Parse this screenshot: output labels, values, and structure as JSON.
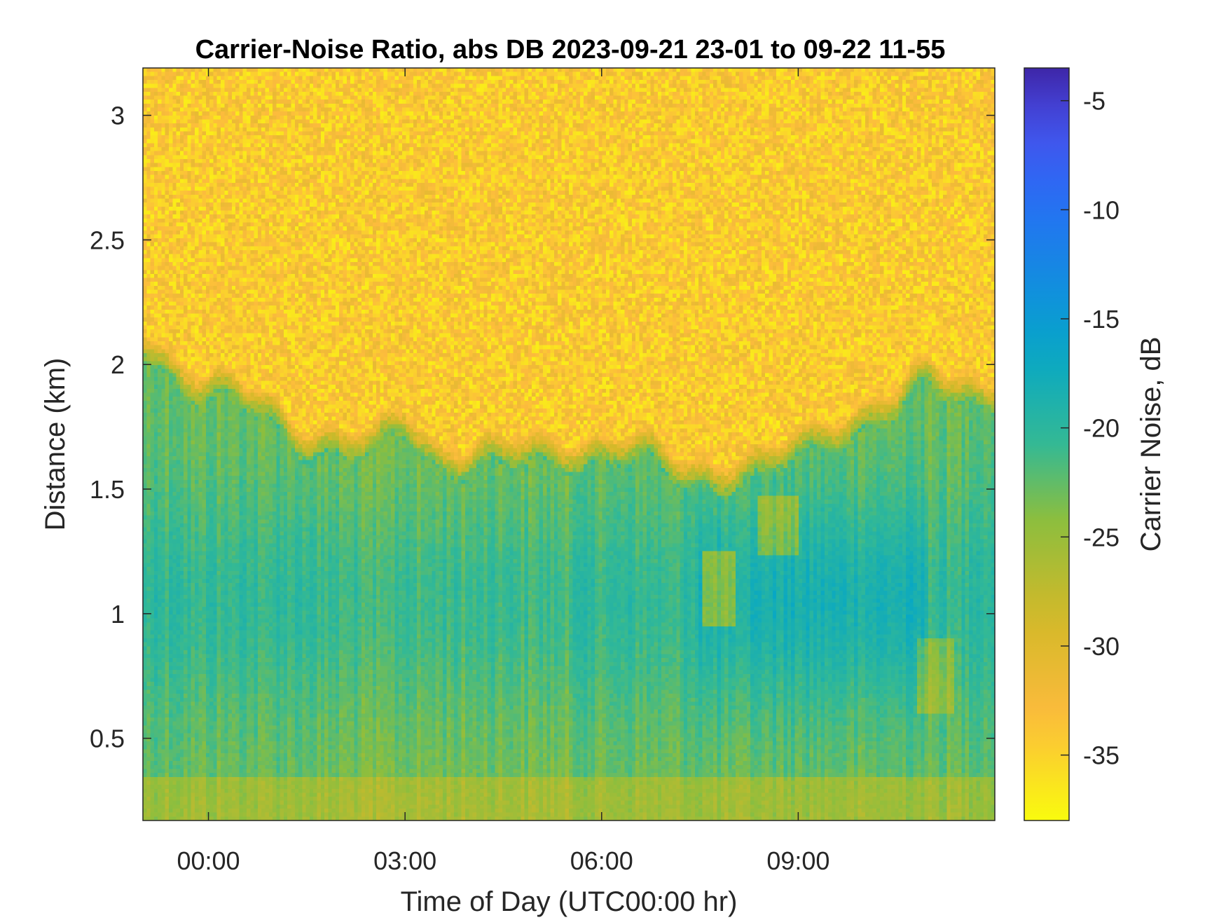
{
  "chart_data": {
    "type": "heatmap",
    "title": "Carrier-Noise Ratio, abs DB 2023-09-21 23-01 to 09-22 11-55",
    "xlabel": "Time of Day (UTC00:00 hr)",
    "ylabel": "Distance (km)",
    "colorbar_label": "Carrier Noise, dB",
    "colormap": "parula (reversed)",
    "xlim_hours": [
      -1.0,
      12.0
    ],
    "ylim_km": [
      0.17,
      3.19
    ],
    "clim_db": [
      -38,
      -3.5
    ],
    "x_ticks": [
      {
        "value": 0,
        "label": "00:00"
      },
      {
        "value": 3,
        "label": "03:00"
      },
      {
        "value": 6,
        "label": "06:00"
      },
      {
        "value": 9,
        "label": "09:00"
      }
    ],
    "y_ticks": [
      {
        "value": 0.5,
        "label": "0.5"
      },
      {
        "value": 1.0,
        "label": "1"
      },
      {
        "value": 1.5,
        "label": "1.5"
      },
      {
        "value": 2.0,
        "label": "2"
      },
      {
        "value": 2.5,
        "label": "2.5"
      },
      {
        "value": 3.0,
        "label": "3"
      }
    ],
    "colorbar_ticks": [
      {
        "value": -5,
        "label": "-5"
      },
      {
        "value": -10,
        "label": "-10"
      },
      {
        "value": -15,
        "label": "-15"
      },
      {
        "value": -20,
        "label": "-20"
      },
      {
        "value": -25,
        "label": "-25"
      },
      {
        "value": -30,
        "label": "-30"
      },
      {
        "value": -35,
        "label": "-35"
      }
    ],
    "boundary_layer_top_km": [
      {
        "t": -1.0,
        "d": 2.05
      },
      {
        "t": 0.0,
        "d": 1.85
      },
      {
        "t": 1.5,
        "d": 1.68
      },
      {
        "t": 2.5,
        "d": 1.58
      },
      {
        "t": 3.0,
        "d": 1.72
      },
      {
        "t": 3.5,
        "d": 1.6
      },
      {
        "t": 4.5,
        "d": 1.55
      },
      {
        "t": 5.5,
        "d": 1.63
      },
      {
        "t": 6.0,
        "d": 1.6
      },
      {
        "t": 7.0,
        "d": 1.55
      },
      {
        "t": 8.5,
        "d": 1.5
      },
      {
        "t": 9.5,
        "d": 1.72
      },
      {
        "t": 10.5,
        "d": 1.75
      },
      {
        "t": 11.0,
        "d": 1.9
      },
      {
        "t": 12.0,
        "d": 1.85
      }
    ]
  }
}
